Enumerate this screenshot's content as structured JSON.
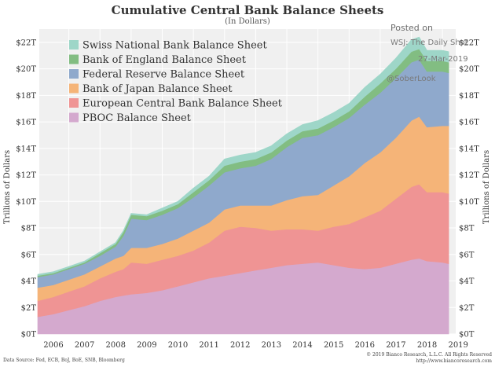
{
  "chart_data": {
    "type": "area",
    "stacked": true,
    "title": "Cumulative Central Bank Balance Sheets",
    "subtitle": "(In Dollars)",
    "ylabel": "Trillions of Dollars",
    "xlabel": "",
    "ylim": [
      0,
      23
    ],
    "xlim": [
      2006.0,
      2019.5
    ],
    "y_ticks": [
      "$0T",
      "$2T",
      "$4T",
      "$6T",
      "$8T",
      "$10T",
      "$12T",
      "$14T",
      "$16T",
      "$18T",
      "$20T",
      "$22T"
    ],
    "x_ticks": [
      "2006",
      "2007",
      "2008",
      "2009",
      "2010",
      "2011",
      "2012",
      "2013",
      "2014",
      "2015",
      "2016",
      "2017",
      "2018",
      "2019"
    ],
    "grid": true,
    "legend_position": "top-left",
    "x": [
      2006.0,
      2006.5,
      2007.0,
      2007.5,
      2008.0,
      2008.5,
      2008.75,
      2009.0,
      2009.5,
      2010.0,
      2010.5,
      2011.0,
      2011.5,
      2012.0,
      2012.5,
      2013.0,
      2013.5,
      2014.0,
      2014.5,
      2015.0,
      2015.5,
      2016.0,
      2016.5,
      2017.0,
      2017.5,
      2018.0,
      2018.25,
      2018.5,
      2019.0,
      2019.2
    ],
    "series": [
      {
        "name": "PBOC Balance Sheet",
        "color": "#d4a9ce",
        "values": [
          1.3,
          1.5,
          1.8,
          2.1,
          2.5,
          2.8,
          2.9,
          3.0,
          3.1,
          3.3,
          3.6,
          3.9,
          4.2,
          4.4,
          4.6,
          4.8,
          5.0,
          5.2,
          5.3,
          5.4,
          5.2,
          5.0,
          4.9,
          5.0,
          5.3,
          5.6,
          5.7,
          5.5,
          5.4,
          5.3
        ]
      },
      {
        "name": "European Central Bank Balance Sheet",
        "color": "#ef9494",
        "values": [
          1.2,
          1.3,
          1.4,
          1.5,
          1.7,
          1.9,
          2.0,
          2.4,
          2.2,
          2.3,
          2.3,
          2.4,
          2.7,
          3.4,
          3.5,
          3.2,
          2.8,
          2.7,
          2.6,
          2.4,
          2.9,
          3.3,
          3.9,
          4.3,
          4.9,
          5.5,
          5.6,
          5.2,
          5.3,
          5.3
        ]
      },
      {
        "name": "Bank of Japan Balance Sheet",
        "color": "#f5b478",
        "values": [
          1.0,
          0.9,
          0.9,
          0.9,
          0.9,
          1.0,
          1.0,
          1.1,
          1.2,
          1.2,
          1.3,
          1.5,
          1.5,
          1.6,
          1.6,
          1.7,
          1.9,
          2.2,
          2.5,
          2.7,
          3.1,
          3.6,
          4.1,
          4.4,
          4.6,
          5.0,
          5.1,
          4.9,
          5.0,
          5.1
        ]
      },
      {
        "name": "Federal Reserve Balance Sheet",
        "color": "#8fa9cc",
        "values": [
          0.8,
          0.8,
          0.8,
          0.8,
          0.8,
          0.9,
          1.5,
          2.2,
          2.1,
          2.2,
          2.3,
          2.5,
          2.8,
          2.8,
          2.8,
          3.0,
          3.5,
          4.0,
          4.4,
          4.5,
          4.4,
          4.4,
          4.4,
          4.5,
          4.5,
          4.4,
          4.3,
          4.2,
          4.1,
          4.0
        ]
      },
      {
        "name": "Bank of England Balance Sheet",
        "color": "#82bd82",
        "values": [
          0.1,
          0.1,
          0.1,
          0.1,
          0.2,
          0.2,
          0.3,
          0.3,
          0.3,
          0.3,
          0.3,
          0.4,
          0.4,
          0.5,
          0.5,
          0.5,
          0.5,
          0.5,
          0.5,
          0.5,
          0.5,
          0.5,
          0.6,
          0.7,
          0.7,
          0.8,
          0.8,
          0.8,
          0.8,
          0.8
        ]
      },
      {
        "name": "Swiss National Bank Balance Sheet",
        "color": "#9ed6c8",
        "values": [
          0.1,
          0.1,
          0.1,
          0.1,
          0.1,
          0.1,
          0.1,
          0.1,
          0.1,
          0.2,
          0.2,
          0.3,
          0.3,
          0.5,
          0.5,
          0.5,
          0.5,
          0.5,
          0.5,
          0.6,
          0.6,
          0.6,
          0.7,
          0.7,
          0.8,
          0.9,
          0.9,
          0.8,
          0.8,
          0.8
        ]
      }
    ],
    "legend_order": [
      "Swiss National Bank Balance Sheet",
      "Bank of England Balance Sheet",
      "Federal Reserve Balance Sheet",
      "Bank of Japan Balance Sheet",
      "European Central Bank Balance Sheet",
      "PBOC Balance Sheet"
    ],
    "data_source": "Data Source: Fed, ECB, BoJ, BoE, SNB, Bloomberg",
    "copyright": "© 2019 Bianco Research, L.L.C. All Rights Reserved",
    "website": "http://www.biancoresearch.com"
  },
  "watermark": {
    "line1": "Posted on",
    "line2": "WSJ: The Daily Shot",
    "line3": "27-Mar-2019",
    "line4": "@SoberLook"
  }
}
